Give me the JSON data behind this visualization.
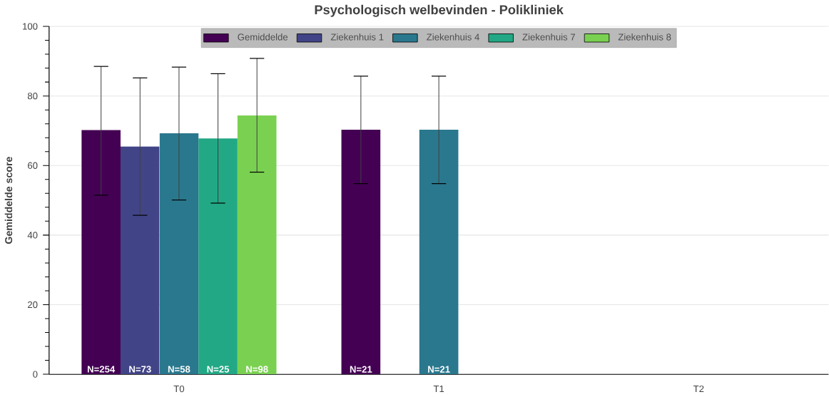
{
  "chart_data": {
    "type": "bar",
    "title": "Psychologisch welbevinden - Polikliniek",
    "ylabel": "Gemiddelde score",
    "categories": [
      "T0",
      "T1",
      "T2"
    ],
    "series": [
      {
        "name": "Gemiddelde",
        "color": "#440154",
        "values": [
          70.2,
          70.3,
          null
        ],
        "errors": [
          [
            51.5,
            88.5
          ],
          [
            54.8,
            85.7
          ],
          null
        ]
      },
      {
        "name": "Ziekenhuis 1",
        "color": "#414487",
        "values": [
          65.5,
          null,
          null
        ],
        "errors": [
          [
            45.7,
            85.2
          ],
          null,
          null
        ]
      },
      {
        "name": "Ziekenhuis 4",
        "color": "#2a788e",
        "values": [
          69.3,
          70.3,
          null
        ],
        "errors": [
          [
            50.1,
            88.3
          ],
          [
            54.8,
            85.7
          ],
          null
        ]
      },
      {
        "name": "Ziekenhuis 7",
        "color": "#22a884",
        "values": [
          67.8,
          null,
          null
        ],
        "errors": [
          [
            49.2,
            86.4
          ],
          null,
          null
        ]
      },
      {
        "name": "Ziekenhuis 8",
        "color": "#7ad151",
        "values": [
          74.4,
          null,
          null
        ],
        "errors": [
          [
            58.1,
            90.8
          ],
          null,
          null
        ]
      }
    ],
    "annotations": [
      "N=254",
      "N=73",
      "N=58",
      "N=25",
      "N=98",
      "N=21",
      "N=21"
    ],
    "ylim": [
      0,
      100
    ],
    "yticks": [
      0,
      20,
      40,
      60,
      80,
      100
    ],
    "grid": "y",
    "legend": "top"
  }
}
